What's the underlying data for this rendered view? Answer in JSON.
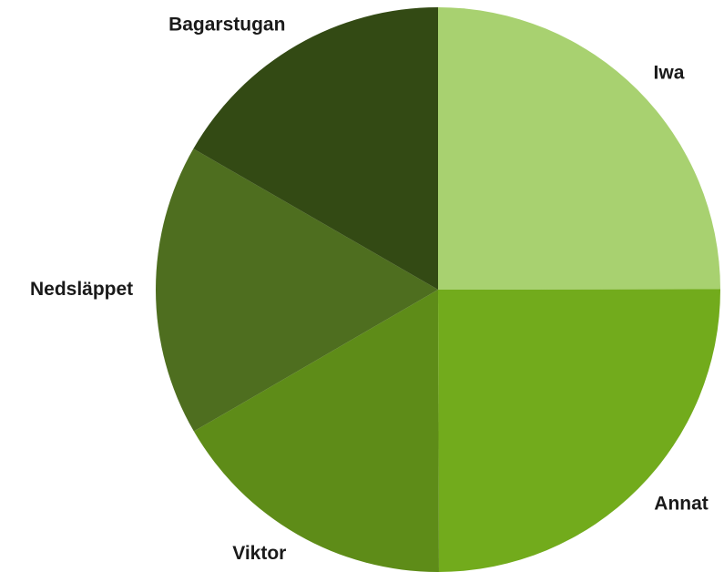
{
  "chart_data": {
    "type": "pie",
    "categories": [
      "Iwa",
      "Annat",
      "Viktor",
      "Nedsläppet",
      "Bagarstugan"
    ],
    "values": [
      25,
      25,
      16.7,
      16.7,
      16.7
    ],
    "colors": [
      "#a8d170",
      "#72ab1c",
      "#5e8c18",
      "#4e6e1f",
      "#334a14"
    ]
  }
}
